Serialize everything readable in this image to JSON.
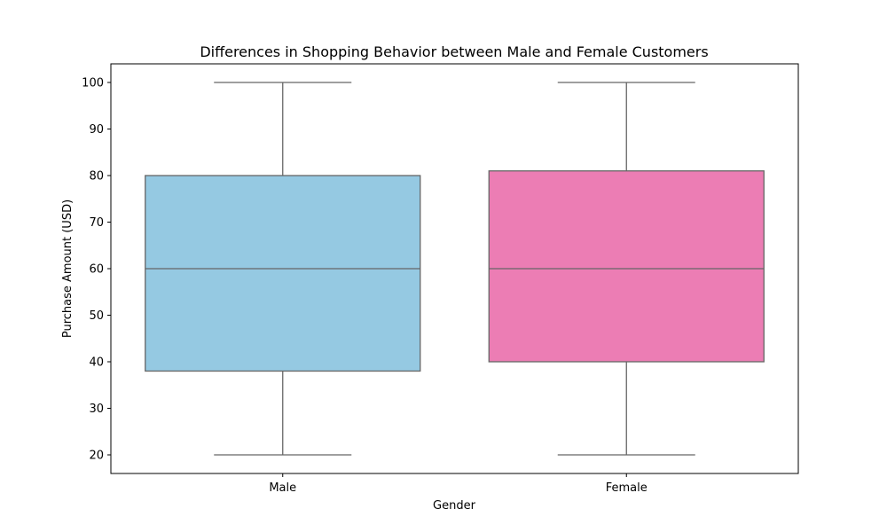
{
  "chart_data": {
    "type": "box",
    "title": "Differences in Shopping Behavior between Male and Female Customers",
    "xlabel": "Gender",
    "ylabel": "Purchase Amount (USD)",
    "ylim": [
      16,
      104
    ],
    "yticks": [
      20,
      30,
      40,
      50,
      60,
      70,
      80,
      90,
      100
    ],
    "grid": false,
    "legend": "none",
    "categories": [
      "Male",
      "Female"
    ],
    "boxes": [
      {
        "category": "Male",
        "min": 20,
        "q1": 38,
        "median": 60,
        "q3": 80,
        "max": 100,
        "color": "#95c9e2"
      },
      {
        "category": "Female",
        "min": 20,
        "q1": 40,
        "median": 60,
        "q3": 81,
        "max": 100,
        "color": "#ec7db4"
      }
    ],
    "line_color": "#666666"
  }
}
